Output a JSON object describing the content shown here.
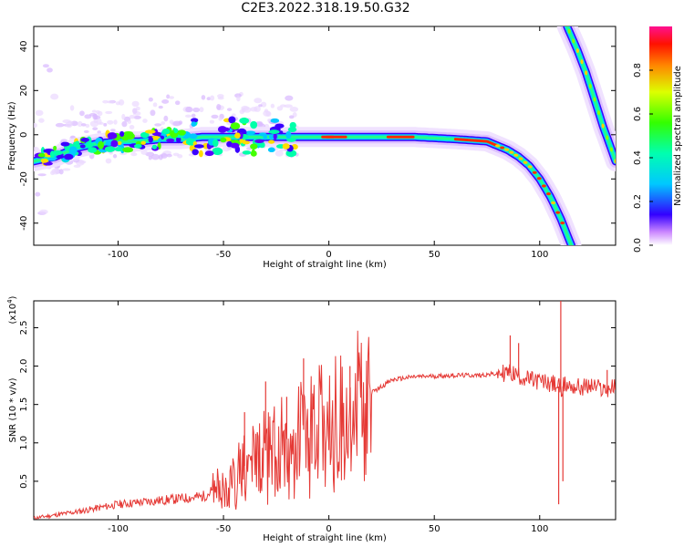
{
  "title": "C2E3.2022.318.19.50.G32",
  "chart_data": [
    {
      "type": "heatmap",
      "xlabel": "Height of straight line (km)",
      "ylabel": "Frequency (Hz)",
      "xlim": [
        -140,
        136
      ],
      "ylim": [
        -50,
        49
      ],
      "xticks": [
        -100,
        -50,
        0,
        50,
        100
      ],
      "yticks": [
        -40,
        -20,
        0,
        20,
        40
      ],
      "colorbar": {
        "label": "Normalized spectral amplitude",
        "range": [
          0.0,
          1.0
        ],
        "ticks": [
          "0.0",
          "0.2",
          "0.4",
          "0.6",
          "0.8"
        ],
        "tick_values": [
          0.0,
          0.2,
          0.4,
          0.6,
          0.8
        ]
      },
      "ridges": [
        {
          "name": "main",
          "x": [
            -140,
            -130,
            -120,
            -110,
            -100,
            -90,
            -80,
            -70,
            -60,
            -50,
            -40,
            -30,
            -20,
            -15,
            0,
            20,
            40,
            60,
            75,
            80,
            85,
            90,
            95,
            100,
            105,
            110,
            115
          ],
          "y": [
            -12,
            -10,
            -6,
            -4,
            -3,
            -3,
            -2,
            -2,
            -1,
            -1,
            -1,
            -1,
            -1,
            -1,
            -1,
            -1,
            -1,
            -2,
            -3,
            -5,
            -7,
            -10,
            -14,
            -20,
            -28,
            -38,
            -50
          ]
        },
        {
          "name": "upper",
          "x": [
            113,
            118,
            122,
            126,
            130,
            136
          ],
          "y": [
            49,
            38,
            28,
            16,
            4,
            -12
          ]
        }
      ]
    },
    {
      "type": "line",
      "xlabel": "Height of straight line (km)",
      "ylabel": "SNR (10 * v/v)",
      "scale_label": "(x10",
      "scale_exp": "4",
      "scale_close": ")",
      "xlim": [
        -140,
        136
      ],
      "ylim": [
        0,
        2.85
      ],
      "xticks": [
        -100,
        -50,
        0,
        50,
        100
      ],
      "yticks": [
        0.5,
        1.0,
        1.5,
        2.0,
        2.5
      ],
      "ytick_labels": [
        "0.5",
        "1.0",
        "1.5",
        "2.0",
        "2.5"
      ],
      "color": "#e53935",
      "envelope_x": [
        -140,
        -120,
        -100,
        -80,
        -60,
        -50,
        -40,
        -30,
        -20,
        -10,
        0,
        10,
        20,
        30,
        40,
        50,
        60,
        70,
        80,
        85,
        90,
        95,
        100,
        105,
        108,
        110,
        112,
        115,
        120,
        125,
        130,
        136
      ],
      "envelope_y": [
        0.02,
        0.1,
        0.2,
        0.25,
        0.3,
        0.45,
        0.7,
        0.9,
        1.05,
        1.2,
        1.35,
        1.5,
        1.65,
        1.82,
        1.86,
        1.87,
        1.88,
        1.88,
        1.9,
        1.92,
        1.88,
        1.82,
        1.8,
        1.78,
        1.75,
        1.72,
        1.75,
        1.74,
        1.72,
        1.74,
        1.7,
        1.72
      ],
      "spikes": [
        {
          "x": -40,
          "y": 1.4
        },
        {
          "x": -30,
          "y": 1.8
        },
        {
          "x": -20,
          "y": 1.6
        },
        {
          "x": -12,
          "y": 2.1
        },
        {
          "x": 10,
          "y": 2.0
        },
        {
          "x": 86,
          "y": 2.4
        },
        {
          "x": 90,
          "y": 2.3
        },
        {
          "x": 109,
          "y": 0.2
        },
        {
          "x": 110,
          "y": 2.85
        },
        {
          "x": 111,
          "y": 0.5
        },
        {
          "x": 132,
          "y": 1.95
        }
      ]
    }
  ]
}
